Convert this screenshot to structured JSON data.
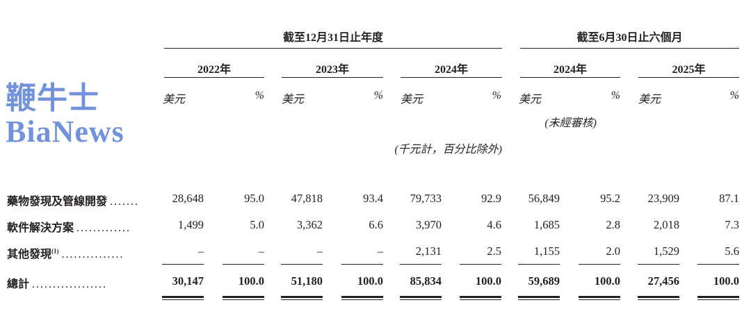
{
  "header": {
    "group_fy": "截至12月31日止年度",
    "group_6m": "截至6月30日止六個月",
    "years": [
      "2022年",
      "2023年",
      "2024年",
      "2024年",
      "2025年"
    ],
    "unit_amount": "美元",
    "unit_pct": "%",
    "unaudited": "(未經審核)",
    "note": "(千元計，百分比除外)"
  },
  "rows": [
    {
      "label": "藥物發現及管線開發",
      "dots": ".......",
      "values": [
        "28,648",
        "95.0",
        "47,818",
        "93.4",
        "79,733",
        "92.9",
        "56,849",
        "95.2",
        "23,909",
        "87.1"
      ]
    },
    {
      "label": "軟件解決方案",
      "dots": ".............",
      "values": [
        "1,499",
        "5.0",
        "3,362",
        "6.6",
        "3,970",
        "4.6",
        "1,685",
        "2.8",
        "2,018",
        "7.3"
      ]
    },
    {
      "label": "其他發現",
      "sup": "(1)",
      "dots": "...............",
      "values": [
        "–",
        "–",
        "–",
        "–",
        "2,131",
        "2.5",
        "1,155",
        "2.0",
        "1,529",
        "5.6"
      ]
    }
  ],
  "total": {
    "label": "總計",
    "dots": "..................",
    "values": [
      "30,147",
      "100.0",
      "51,180",
      "100.0",
      "85,834",
      "100.0",
      "59,689",
      "100.0",
      "27,456",
      "100.0"
    ]
  },
  "watermark": "鞭牛士 BiaNews"
}
